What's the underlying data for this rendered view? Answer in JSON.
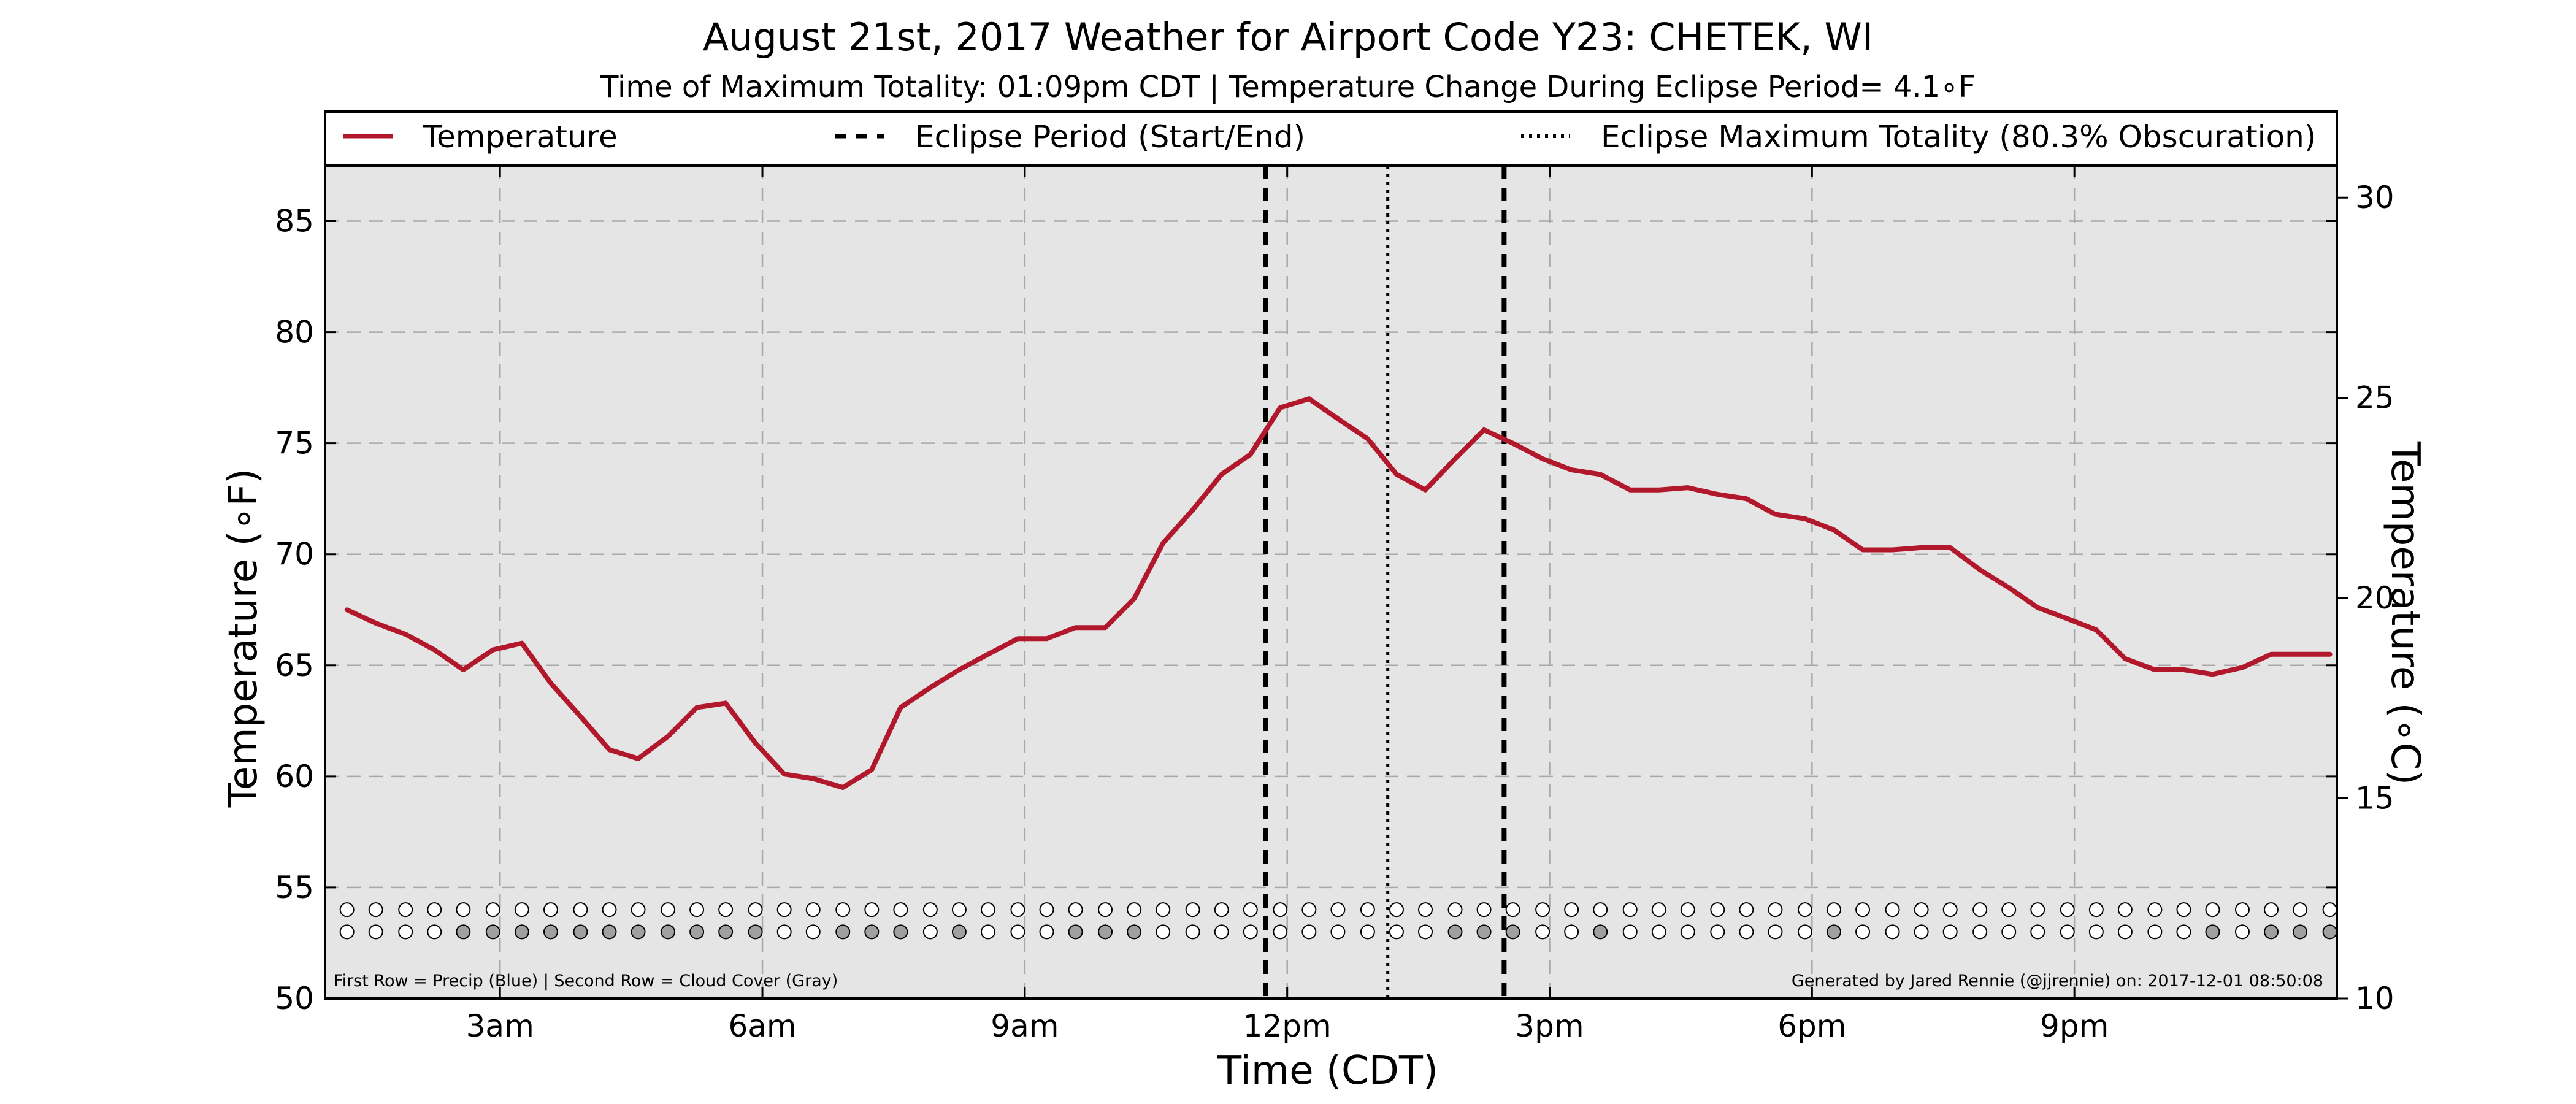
{
  "chart_data": {
    "type": "line",
    "title": "August 21st, 2017 Weather for Airport Code Y23: CHETEK, WI",
    "subtitle": "Time of Maximum Totality: 01:09pm CDT | Temperature Change During Eclipse Period= 4.1∘F",
    "xlabel": "Time (CDT)",
    "ylabel": "Temperature (∘F)",
    "ylabel_right": "Temperature (∘C)",
    "x_unit": "hours (CDT)",
    "xlim": [
      1.0,
      24.0
    ],
    "ylim": [
      50,
      87.5
    ],
    "ylim_right_celsius": [
      10,
      30.8
    ],
    "x_ticks": [
      {
        "value": 3,
        "label": "3am"
      },
      {
        "value": 6,
        "label": "6am"
      },
      {
        "value": 9,
        "label": "9am"
      },
      {
        "value": 12,
        "label": "12pm"
      },
      {
        "value": 15,
        "label": "3pm"
      },
      {
        "value": 18,
        "label": "6pm"
      },
      {
        "value": 21,
        "label": "9pm"
      }
    ],
    "y_ticks": [
      50,
      55,
      60,
      65,
      70,
      75,
      80,
      85
    ],
    "y_ticks_right": [
      10,
      15,
      20,
      25,
      30
    ],
    "grid": true,
    "legend": {
      "placement": "top",
      "entries": [
        {
          "label": "Temperature",
          "style": "solid"
        },
        {
          "label": "Eclipse Period (Start/End)",
          "style": "dashed"
        },
        {
          "label": "Eclipse Maximum Totality (80.3% Obscuration)",
          "style": "dotted"
        }
      ]
    },
    "series": [
      {
        "name": "Temperature",
        "color": "#b2182b",
        "x": [
          1.25,
          1.58,
          1.92,
          2.25,
          2.58,
          2.92,
          3.25,
          3.58,
          3.92,
          4.25,
          4.58,
          4.92,
          5.25,
          5.58,
          5.92,
          6.25,
          6.58,
          6.92,
          7.25,
          7.58,
          7.92,
          8.25,
          8.58,
          8.92,
          9.25,
          9.58,
          9.92,
          10.25,
          10.58,
          10.92,
          11.25,
          11.58,
          11.92,
          12.25,
          12.58,
          12.92,
          13.25,
          13.58,
          13.92,
          14.25,
          14.58,
          14.92,
          15.25,
          15.58,
          15.92,
          16.25,
          16.58,
          16.92,
          17.25,
          17.58,
          17.92,
          18.25,
          18.58,
          18.92,
          19.25,
          19.58,
          19.92,
          20.25,
          20.58,
          20.92,
          21.25,
          21.58,
          21.92,
          22.25,
          22.58,
          22.92,
          23.25,
          23.58,
          23.92
        ],
        "values": [
          67.5,
          66.9,
          66.4,
          65.7,
          64.8,
          65.7,
          66.0,
          64.2,
          62.7,
          61.2,
          60.8,
          61.8,
          63.1,
          63.3,
          61.5,
          60.1,
          59.9,
          59.5,
          60.3,
          63.1,
          64.0,
          64.8,
          65.5,
          66.2,
          66.2,
          66.7,
          66.7,
          68.0,
          70.5,
          72.0,
          73.6,
          74.5,
          76.6,
          77.0,
          76.1,
          75.2,
          73.6,
          72.9,
          74.3,
          75.6,
          75.0,
          74.3,
          73.8,
          73.6,
          72.9,
          72.9,
          73.0,
          72.7,
          72.5,
          71.8,
          71.6,
          71.1,
          70.2,
          70.2,
          70.3,
          70.3,
          69.3,
          68.5,
          67.6,
          67.1,
          66.6,
          65.3,
          64.8,
          64.8,
          64.6,
          64.9,
          65.5,
          65.5,
          65.5
        ]
      }
    ],
    "eclipse_start": 11.75,
    "eclipse_max": 13.15,
    "eclipse_end": 14.48,
    "dot_rows": {
      "x": [
        1.25,
        1.58,
        1.92,
        2.25,
        2.58,
        2.92,
        3.25,
        3.58,
        3.92,
        4.25,
        4.58,
        4.92,
        5.25,
        5.58,
        5.92,
        6.25,
        6.58,
        6.92,
        7.25,
        7.58,
        7.92,
        8.25,
        8.58,
        8.92,
        9.25,
        9.58,
        9.92,
        10.25,
        10.58,
        10.92,
        11.25,
        11.58,
        11.92,
        12.25,
        12.58,
        12.92,
        13.25,
        13.58,
        13.92,
        14.25,
        14.58,
        14.92,
        15.25,
        15.58,
        15.92,
        16.25,
        16.58,
        16.92,
        17.25,
        17.58,
        17.92,
        18.25,
        18.58,
        18.92,
        19.25,
        19.58,
        19.92,
        20.25,
        20.58,
        20.92,
        21.25,
        21.58,
        21.92,
        22.25,
        22.58,
        22.92,
        23.25,
        23.58,
        23.92
      ],
      "precip_y": 54.0,
      "cloud_y": 53.0,
      "precip": [
        0,
        0,
        0,
        0,
        0,
        0,
        0,
        0,
        0,
        0,
        0,
        0,
        0,
        0,
        0,
        0,
        0,
        0,
        0,
        0,
        0,
        0,
        0,
        0,
        0,
        0,
        0,
        0,
        0,
        0,
        0,
        0,
        0,
        0,
        0,
        0,
        0,
        0,
        0,
        0,
        0,
        0,
        0,
        0,
        0,
        0,
        0,
        0,
        0,
        0,
        0,
        0,
        0,
        0,
        0,
        0,
        0,
        0,
        0,
        0,
        0,
        0,
        0,
        0,
        0,
        0,
        0,
        0,
        0
      ],
      "cloud": [
        0,
        0,
        0,
        0,
        1,
        1,
        1,
        1,
        1,
        1,
        1,
        1,
        1,
        1,
        1,
        0,
        0,
        1,
        1,
        1,
        0,
        1,
        0,
        0,
        0,
        1,
        1,
        1,
        0,
        0,
        0,
        0,
        0,
        0,
        0,
        0,
        0,
        0,
        1,
        1,
        1,
        0,
        0,
        1,
        0,
        0,
        0,
        0,
        0,
        0,
        0,
        1,
        0,
        0,
        0,
        0,
        0,
        0,
        0,
        0,
        0,
        0,
        0,
        0,
        1,
        0,
        1,
        1,
        1
      ],
      "precip_color": "#1f77b4",
      "cloud_color": "#a0a0a0",
      "empty_color": "#ffffff"
    },
    "footnote_left": "First Row = Precip (Blue) | Second Row = Cloud Cover (Gray)",
    "footnote_right": "Generated by Jared Rennie (@jjrennie) on: 2017-12-01 08:50:08",
    "plot_background": "#e5e5e5"
  }
}
